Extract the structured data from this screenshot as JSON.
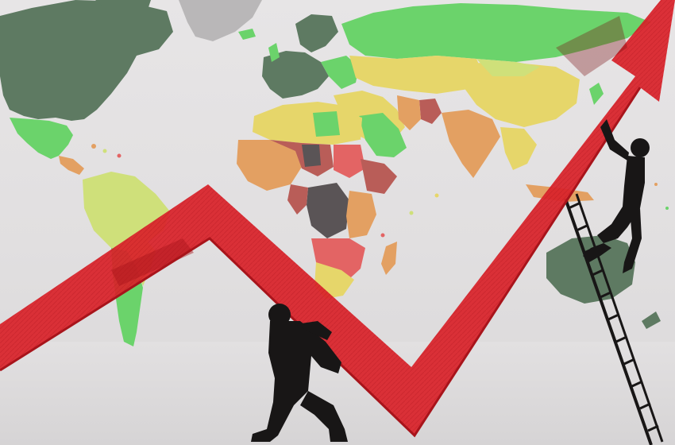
{
  "image": {
    "text": [],
    "palette": {
      "background": "#e4e2e3",
      "arrow": "#d9222a",
      "arrow_dark": "#a8141b",
      "silhouette": "#181616",
      "dark_green": "#5e7a62",
      "green": "#6bd36b",
      "yellow_green": "#cfe07a",
      "yellow": "#e6d66a",
      "orange": "#e3a062",
      "red_brown": "#b95d58",
      "red": "#e36464",
      "dark_gray": "#5a5456"
    }
  }
}
